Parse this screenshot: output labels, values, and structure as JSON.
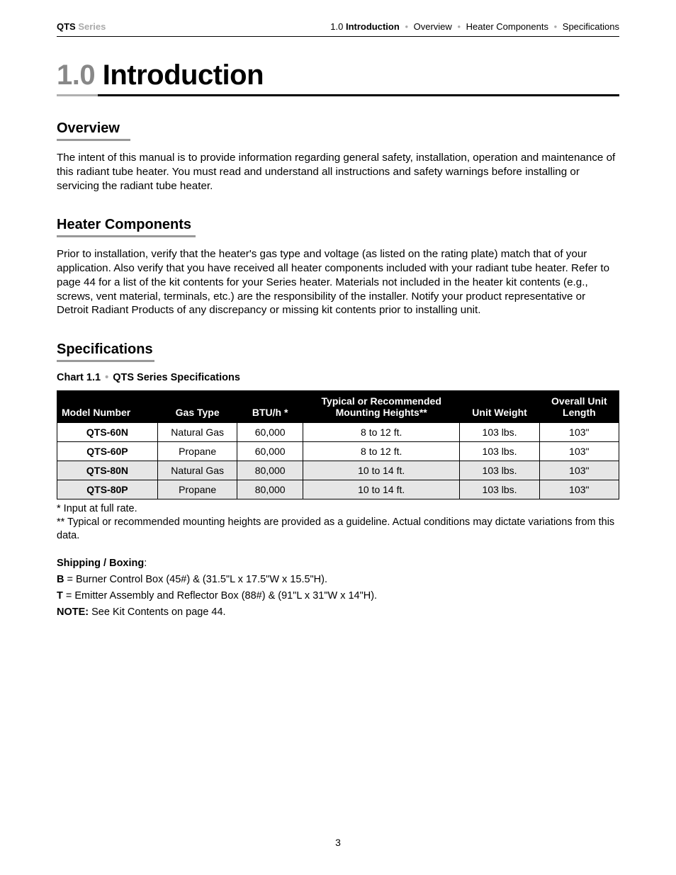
{
  "header": {
    "left_bold": "QTS",
    "left_gray": " Series",
    "right_num": "1.0 ",
    "right_bold": "Introduction",
    "right_items": [
      "Overview",
      "Heater Components",
      "Specifications"
    ]
  },
  "title": {
    "num": "1.0 ",
    "word": "Introduction"
  },
  "overview": {
    "heading": "Overview",
    "text": "The intent of this manual is to provide information regarding general safety, installation, operation and maintenance of this radiant tube heater.  You must read and understand all instructions and safety warnings before installing or servicing the radiant tube heater."
  },
  "heater": {
    "heading": "Heater Components",
    "text": "Prior to installation, verify that the heater's gas type and voltage (as listed on the rating plate) match that of your application.  Also verify that you have received all heater components included with your radiant tube heater. Refer to page 44 for a list of the kit contents for your Series heater. Materials not included in the heater kit contents (e.g., screws, vent material, terminals, etc.) are the responsibility of the installer. Notify your product representative or Detroit Radiant Products of any discrepancy or missing kit contents prior to installing unit."
  },
  "spec": {
    "heading": "Specifications",
    "chart_label_a": "Chart 1.1 ",
    "chart_label_b": " QTS Series Specifications",
    "columns": {
      "model": "Model Number",
      "gas": "Gas Type",
      "btu": "BTU/h *",
      "mount_line1": "Typical or Recommended",
      "mount_line2": "Mounting Heights**",
      "weight": "Unit Weight",
      "length_line1": "Overall Unit",
      "length_line2": "Length"
    },
    "rows": [
      {
        "model": "QTS-60N",
        "gas": "Natural Gas",
        "btu": "60,000",
        "mount": "8 to 12 ft.",
        "weight": "103 lbs.",
        "length": "103\"",
        "shade": false
      },
      {
        "model": "QTS-60P",
        "gas": "Propane",
        "btu": "60,000",
        "mount": "8 to 12 ft.",
        "weight": "103 lbs.",
        "length": "103\"",
        "shade": false
      },
      {
        "model": "QTS-80N",
        "gas": "Natural Gas",
        "btu": "80,000",
        "mount": "10 to 14 ft.",
        "weight": "103 lbs.",
        "length": "103\"",
        "shade": true
      },
      {
        "model": "QTS-80P",
        "gas": "Propane",
        "btu": "80,000",
        "mount": "10 to 14 ft.",
        "weight": "103 lbs.",
        "length": "103\"",
        "shade": true
      }
    ],
    "footnote1": "*   Input at full rate.",
    "footnote2": "** Typical or recommended mounting heights are provided as a guideline. Actual conditions may dictate variations from this data."
  },
  "shipping": {
    "heading": "Shipping / Boxing",
    "line_b_label": "B",
    "line_b_text": " =  Burner Control Box  (45#) & (31.5\"L x 17.5\"W x 15.5\"H).",
    "line_t_label": "T",
    "line_t_text": " =  Emitter Assembly and Reflector Box  (88#) & (91\"L x 31\"W x 14\"H).",
    "note_label": "NOTE:",
    "note_text": " See Kit Contents on page 44."
  },
  "page_number": "3",
  "colors": {
    "gray_text": "#aaaaaa",
    "underline_gray": "#999999",
    "table_header_bg": "#000000",
    "table_header_fg": "#ffffff",
    "row_shade": "#e6e6e6"
  }
}
